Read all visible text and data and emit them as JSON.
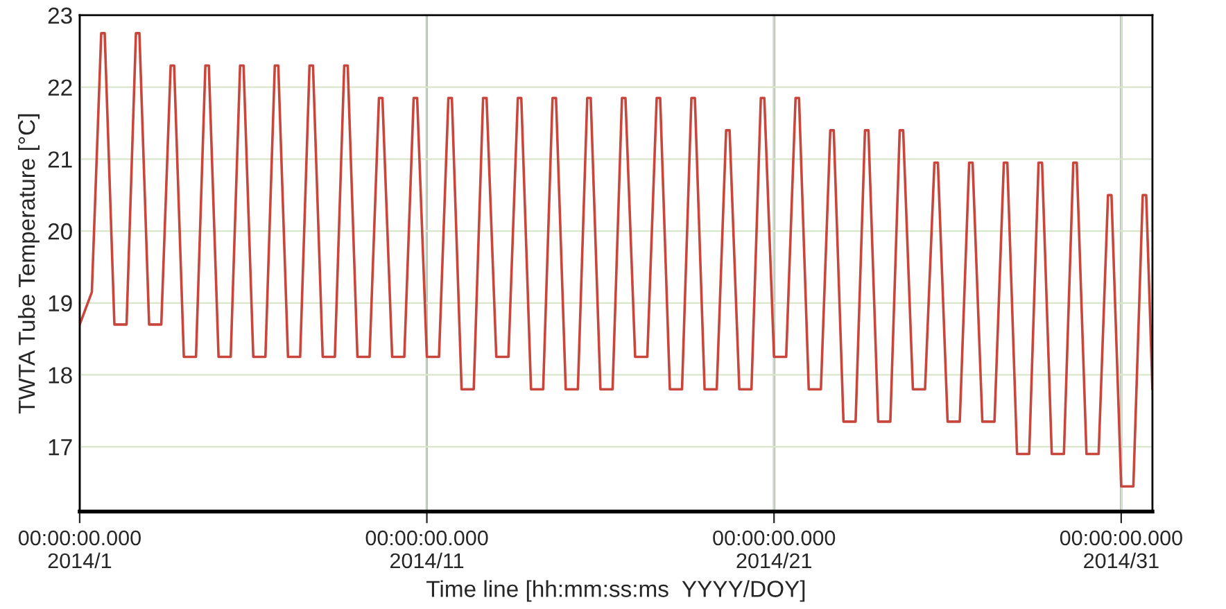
{
  "chart_data": {
    "type": "line",
    "xlabel": "Time line [hh:mm:ss:ms  YYYY/DOY]",
    "ylabel": "TWTA Tube Temperature [°C]",
    "xlim": [
      "2014-01-01",
      "2014-01-31T21:36"
    ],
    "ylim": [
      16.1,
      23
    ],
    "xticks": [
      {
        "value": "2014-01-01",
        "label": "00:00:00.000\n2014/1"
      },
      {
        "value": "2014-01-11",
        "label": "00:00:00.000\n2014/11"
      },
      {
        "value": "2014-01-21",
        "label": "00:00:00.000\n2014/21"
      },
      {
        "value": "2014-01-31",
        "label": "00:00:00.000\n2014/31"
      }
    ],
    "yticks": [
      17,
      18,
      19,
      20,
      21,
      22,
      23
    ],
    "grid": true,
    "marker": "none",
    "line_style": "solid",
    "series": [
      {
        "color": "#c8463c",
        "x": [
          "2014-01-01T00:00",
          "2014-01-01T08:24",
          "2014-01-01T14:53",
          "2014-01-01T17:17",
          "2014-01-02T00:00",
          "2014-01-02T08:24",
          "2014-01-02T14:53",
          "2014-01-02T17:17",
          "2014-01-03T00:00",
          "2014-01-03T08:24",
          "2014-01-03T14:53",
          "2014-01-03T17:17",
          "2014-01-04T00:00",
          "2014-01-04T08:24",
          "2014-01-04T14:53",
          "2014-01-04T17:17",
          "2014-01-05T00:00",
          "2014-01-05T08:24",
          "2014-01-05T14:53",
          "2014-01-05T17:17",
          "2014-01-06T00:00",
          "2014-01-06T08:24",
          "2014-01-06T14:53",
          "2014-01-06T17:17",
          "2014-01-07T00:00",
          "2014-01-07T08:24",
          "2014-01-07T14:53",
          "2014-01-07T17:17",
          "2014-01-08T00:00",
          "2014-01-08T08:24",
          "2014-01-08T14:53",
          "2014-01-08T17:17",
          "2014-01-09T00:00",
          "2014-01-09T08:24",
          "2014-01-09T14:53",
          "2014-01-09T17:17",
          "2014-01-10T00:00",
          "2014-01-10T08:24",
          "2014-01-10T14:53",
          "2014-01-10T17:17",
          "2014-01-11T00:00",
          "2014-01-11T08:24",
          "2014-01-11T14:53",
          "2014-01-11T17:17",
          "2014-01-12T00:00",
          "2014-01-12T08:24",
          "2014-01-12T14:53",
          "2014-01-12T17:17",
          "2014-01-13T00:00",
          "2014-01-13T08:24",
          "2014-01-13T14:53",
          "2014-01-13T17:17",
          "2014-01-14T00:00",
          "2014-01-14T08:24",
          "2014-01-14T14:53",
          "2014-01-14T17:17",
          "2014-01-15T00:00",
          "2014-01-15T08:24",
          "2014-01-15T14:53",
          "2014-01-15T17:17",
          "2014-01-16T00:00",
          "2014-01-16T08:24",
          "2014-01-16T14:53",
          "2014-01-16T17:17",
          "2014-01-17T00:00",
          "2014-01-17T08:24",
          "2014-01-17T14:53",
          "2014-01-17T17:17",
          "2014-01-18T00:00",
          "2014-01-18T08:24",
          "2014-01-18T14:53",
          "2014-01-18T17:17",
          "2014-01-19T00:00",
          "2014-01-19T08:24",
          "2014-01-19T14:53",
          "2014-01-19T17:17",
          "2014-01-20T00:00",
          "2014-01-20T08:24",
          "2014-01-20T14:53",
          "2014-01-20T17:17",
          "2014-01-21T00:00",
          "2014-01-21T08:24",
          "2014-01-21T14:53",
          "2014-01-21T17:17",
          "2014-01-22T00:00",
          "2014-01-22T08:24",
          "2014-01-22T14:53",
          "2014-01-22T17:17",
          "2014-01-23T00:00",
          "2014-01-23T08:24",
          "2014-01-23T14:53",
          "2014-01-23T17:17",
          "2014-01-24T00:00",
          "2014-01-24T08:24",
          "2014-01-24T14:53",
          "2014-01-24T17:17",
          "2014-01-25T00:00",
          "2014-01-25T08:24",
          "2014-01-25T14:53",
          "2014-01-25T17:17",
          "2014-01-26T00:00",
          "2014-01-26T08:24",
          "2014-01-26T14:53",
          "2014-01-26T17:17",
          "2014-01-27T00:00",
          "2014-01-27T08:24",
          "2014-01-27T14:53",
          "2014-01-27T17:17",
          "2014-01-28T00:00",
          "2014-01-28T08:24",
          "2014-01-28T14:53",
          "2014-01-28T17:17",
          "2014-01-29T00:00",
          "2014-01-29T08:24",
          "2014-01-29T14:53",
          "2014-01-29T17:17",
          "2014-01-30T00:00",
          "2014-01-30T08:24",
          "2014-01-30T14:53",
          "2014-01-30T17:17",
          "2014-01-31T00:00",
          "2014-01-31T08:24",
          "2014-01-31T14:53",
          "2014-01-31T17:17",
          "2014-01-31T21:36"
        ],
        "values": [
          18.7,
          19.15,
          22.75,
          22.75,
          18.7,
          18.7,
          22.75,
          22.75,
          18.7,
          18.7,
          22.3,
          22.3,
          18.25,
          18.25,
          22.3,
          22.3,
          18.25,
          18.25,
          22.3,
          22.3,
          18.25,
          18.25,
          22.3,
          22.3,
          18.25,
          18.25,
          22.3,
          22.3,
          18.25,
          18.25,
          22.3,
          22.3,
          18.25,
          18.25,
          21.85,
          21.85,
          18.25,
          18.25,
          21.85,
          21.85,
          18.25,
          18.25,
          21.85,
          21.85,
          17.8,
          17.8,
          21.85,
          21.85,
          18.25,
          18.25,
          21.85,
          21.85,
          17.8,
          17.8,
          21.85,
          21.85,
          17.8,
          17.8,
          21.85,
          21.85,
          17.8,
          17.8,
          21.85,
          21.85,
          18.25,
          18.25,
          21.85,
          21.85,
          17.8,
          17.8,
          21.85,
          21.85,
          17.8,
          17.8,
          21.4,
          21.4,
          17.8,
          17.8,
          21.85,
          21.85,
          18.25,
          18.25,
          21.85,
          21.85,
          17.8,
          17.8,
          21.4,
          21.4,
          17.35,
          17.35,
          21.4,
          21.4,
          17.35,
          17.35,
          21.4,
          21.4,
          17.8,
          17.8,
          20.95,
          20.95,
          17.35,
          17.35,
          20.95,
          20.95,
          17.35,
          17.35,
          20.95,
          20.95,
          16.9,
          16.9,
          20.95,
          20.95,
          16.9,
          16.9,
          20.95,
          20.95,
          16.9,
          16.9,
          20.5,
          20.5,
          16.45,
          16.45,
          20.5,
          20.5,
          17.8
        ]
      }
    ]
  }
}
